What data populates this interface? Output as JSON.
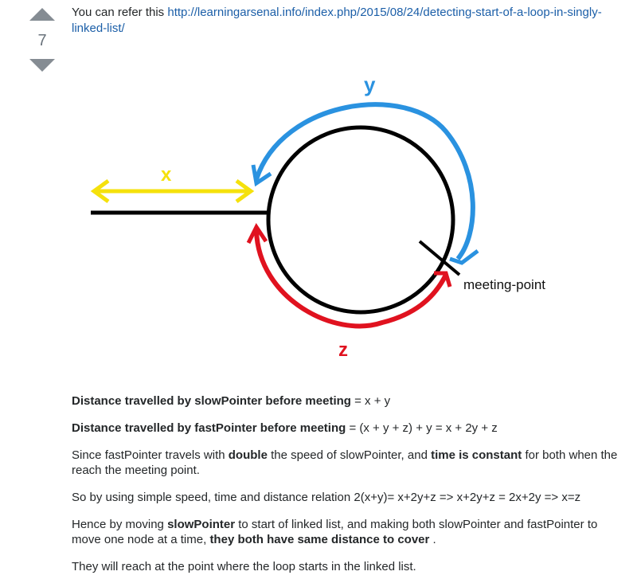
{
  "vote": {
    "count": "7"
  },
  "intro": {
    "prefix": "You can refer this ",
    "link": "http://learningarsenal.info/index.php/2015/08/24/detecting-start-of-a-loop-in-singly-linked-list/"
  },
  "diagram": {
    "label_x": "x",
    "label_y": "y",
    "label_z": "z",
    "meeting_label": "meeting-point",
    "colors": {
      "x": "#f5e10c",
      "y": "#2a92e0",
      "z": "#e0121f",
      "line": "#000000"
    }
  },
  "paragraphs": {
    "p1_bold": "Distance travelled by slowPointer before meeting",
    "p1_rest": " = x + y",
    "p2_bold": "Distance travelled by fastPointer before meeting",
    "p2_rest": " = (x + y + z) + y = x + 2y + z",
    "p3_a": "Since fastPointer travels with ",
    "p3_b": "double",
    "p3_c": " the speed of slowPointer, and ",
    "p3_d": "time is constant",
    "p3_e": " for both when the reach the meeting point.",
    "p4": "So by using simple speed, time and distance relation 2(x+y)= x+2y+z => x+2y+z = 2x+2y => x=z",
    "p5_a": "Hence by moving ",
    "p5_b": "slowPointer",
    "p5_c": " to start of linked list, and making both slowPointer and fastPointer to move one node at a time, ",
    "p5_d": "they both have same distance to cover",
    "p5_e": " .",
    "p6": "They will reach at the point where the loop starts in the linked list."
  }
}
